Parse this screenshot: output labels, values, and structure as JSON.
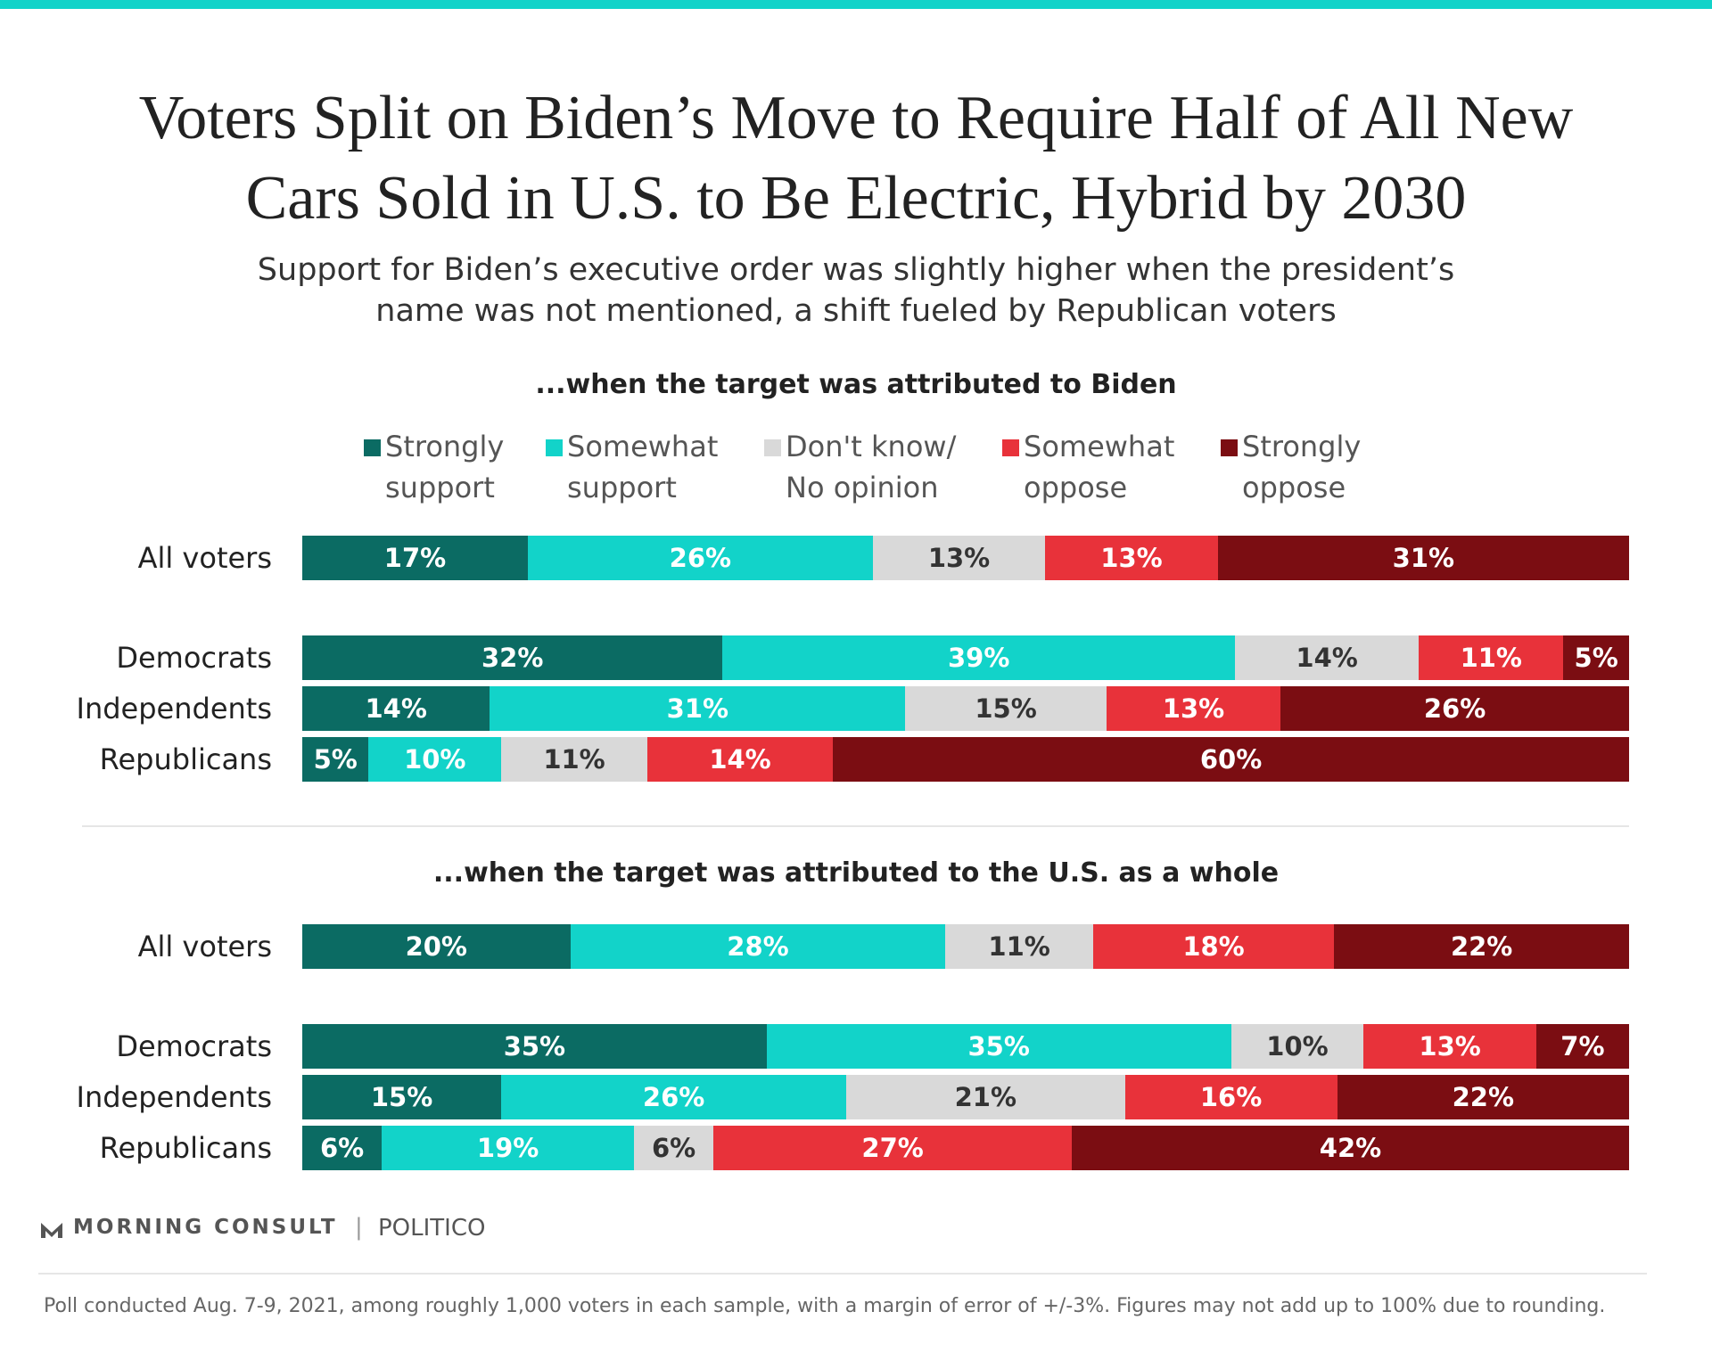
{
  "title": "Voters Split on Biden’s Move to Require Half of All New Cars Sold in U.S. to Be Electric, Hybrid by 2030",
  "subtitle": "Support for Biden’s executive order was slightly higher when the president’s name was not mentioned, a shift fueled by Republican voters",
  "chart_data": [
    {
      "type": "bar",
      "stacked": true,
      "orientation": "horizontal",
      "subtitle": "...when the target was attributed to Biden",
      "categories": [
        "All voters",
        "Democrats",
        "Independents",
        "Republicans"
      ],
      "series": [
        {
          "name": "Strongly support",
          "color": "#0b6b63",
          "values": [
            17,
            32,
            14,
            5
          ],
          "value_labels": [
            "17%",
            "32%",
            "14%",
            "5%"
          ]
        },
        {
          "name": "Somewhat support",
          "color": "#12d3c9",
          "values": [
            26,
            39,
            31,
            10
          ],
          "value_labels": [
            "26%",
            "39%",
            "31%",
            "10%"
          ]
        },
        {
          "name": "Don't know/ No opinion",
          "color": "#d9d9d9",
          "values": [
            13,
            14,
            15,
            11
          ],
          "value_labels": [
            "13%",
            "14%",
            "15%",
            "11%"
          ]
        },
        {
          "name": "Somewhat oppose",
          "color": "#e8323a",
          "values": [
            13,
            11,
            13,
            14
          ],
          "value_labels": [
            "13%",
            "11%",
            "13%",
            "14%"
          ]
        },
        {
          "name": "Strongly oppose",
          "color": "#7b0d12",
          "values": [
            31,
            5,
            26,
            60
          ],
          "value_labels": [
            "31%",
            "5%",
            "26%",
            "60%"
          ]
        }
      ]
    },
    {
      "type": "bar",
      "stacked": true,
      "orientation": "horizontal",
      "subtitle": "...when the target was attributed to the U.S. as a whole",
      "categories": [
        "All voters",
        "Democrats",
        "Independents",
        "Republicans"
      ],
      "series": [
        {
          "color": "#0b6b63",
          "values": [
            20,
            35,
            15,
            6
          ],
          "value_labels": [
            "20%",
            "35%",
            "15%",
            "6%"
          ]
        },
        {
          "color": "#12d3c9",
          "values": [
            28,
            35,
            26,
            19
          ],
          "value_labels": [
            "28%",
            "35%",
            "26%",
            "19%"
          ]
        },
        {
          "color": "#d9d9d9",
          "values": [
            11,
            10,
            21,
            6
          ],
          "value_labels": [
            "11%",
            "10%",
            "21%",
            "6%"
          ]
        },
        {
          "color": "#e8323a",
          "values": [
            18,
            13,
            16,
            27
          ],
          "value_labels": [
            "18%",
            "13%",
            "16%",
            "27%"
          ]
        },
        {
          "color": "#7b0d12",
          "values": [
            22,
            7,
            22,
            42
          ],
          "value_labels": [
            "22%",
            "7%",
            "22%",
            "42%"
          ]
        }
      ]
    }
  ],
  "brand": "MORNING CONSULT",
  "partner": "POLITICO",
  "note": "Poll conducted Aug. 7-9, 2021, among roughly 1,000 voters in each sample, with a margin of error of +/-3%. Figures may not add up to 100% due to rounding."
}
